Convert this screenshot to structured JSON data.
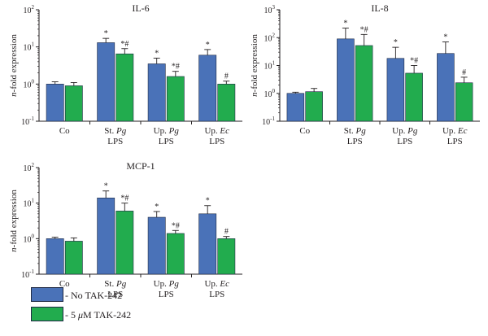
{
  "colors": {
    "no_tak": "#4a72b8",
    "tak": "#22ac4e",
    "axis": "#231f20"
  },
  "legend": [
    {
      "label": "- No TAK-242",
      "color": "#4a72b8"
    },
    {
      "label_prefix": "- 5 ",
      "label_mu": "μ",
      "label_suffix": "M TAK-242",
      "color": "#22ac4e"
    }
  ],
  "chart_data": [
    {
      "type": "bar",
      "title": "IL-6",
      "ylabel": "n-fold expression",
      "yscale": "log",
      "ylim": [
        0.1,
        100
      ],
      "yticks": [
        {
          "base": "10",
          "exp": "-1"
        },
        {
          "base": "10",
          "exp": "0"
        },
        {
          "base": "10",
          "exp": "1"
        },
        {
          "base": "10",
          "exp": "2"
        }
      ],
      "categories": [
        {
          "line1": "Co",
          "line1_italic": "",
          "line2": ""
        },
        {
          "line1": "St. ",
          "line1_italic": "Pg",
          "line2": "LPS"
        },
        {
          "line1": "Up. ",
          "line1_italic": "Pg",
          "line2": "LPS"
        },
        {
          "line1": "Up. ",
          "line1_italic": "Ec",
          "line2": "LPS"
        }
      ],
      "series": [
        {
          "name": "No TAK-242",
          "values": [
            1.0,
            13.0,
            3.5,
            6.0
          ],
          "err": [
            1.15,
            17.0,
            5.0,
            8.5
          ],
          "marks": [
            "",
            "*",
            "*",
            "*"
          ]
        },
        {
          "name": "5 μM TAK-242",
          "values": [
            0.9,
            6.5,
            1.6,
            1.0
          ],
          "err": [
            1.1,
            9.0,
            2.2,
            1.2
          ],
          "marks": [
            "",
            "*#",
            "*#",
            "#"
          ]
        }
      ]
    },
    {
      "type": "bar",
      "title": "IL-8",
      "ylabel": "n-fold expression",
      "yscale": "log",
      "ylim": [
        0.1,
        1000
      ],
      "yticks": [
        {
          "base": "10",
          "exp": "-1"
        },
        {
          "base": "10",
          "exp": "0"
        },
        {
          "base": "10",
          "exp": "1"
        },
        {
          "base": "10",
          "exp": "2"
        },
        {
          "base": "10",
          "exp": "3"
        }
      ],
      "categories": [
        {
          "line1": "Co",
          "line1_italic": "",
          "line2": ""
        },
        {
          "line1": "St. ",
          "line1_italic": "Pg",
          "line2": "LPS"
        },
        {
          "line1": "Up. ",
          "line1_italic": "Pg",
          "line2": "LPS"
        },
        {
          "line1": "Up. ",
          "line1_italic": "Ec",
          "line2": "LPS"
        }
      ],
      "series": [
        {
          "name": "No TAK-242",
          "values": [
            1.0,
            90.0,
            18.0,
            27.0
          ],
          "err": [
            1.1,
            220.0,
            45.0,
            70.0
          ],
          "marks": [
            "",
            "*",
            "*",
            "*"
          ]
        },
        {
          "name": "5 μM TAK-242",
          "values": [
            1.15,
            52.0,
            5.3,
            2.4
          ],
          "err": [
            1.5,
            130.0,
            10.0,
            3.8
          ],
          "marks": [
            "",
            "*#",
            "*#",
            "#"
          ]
        }
      ]
    },
    {
      "type": "bar",
      "title": "MCP-1",
      "ylabel": "n-fold expression",
      "yscale": "log",
      "ylim": [
        0.1,
        100
      ],
      "yticks": [
        {
          "base": "10",
          "exp": "-1"
        },
        {
          "base": "10",
          "exp": "0"
        },
        {
          "base": "10",
          "exp": "1"
        },
        {
          "base": "10",
          "exp": "2"
        }
      ],
      "categories": [
        {
          "line1": "Co",
          "line1_italic": "",
          "line2": ""
        },
        {
          "line1": "St. ",
          "line1_italic": "Pg",
          "line2": "LPS"
        },
        {
          "line1": "Up. ",
          "line1_italic": "Pg",
          "line2": "LPS"
        },
        {
          "line1": "Up. ",
          "line1_italic": "Ec",
          "line2": "LPS"
        }
      ],
      "series": [
        {
          "name": "No TAK-242",
          "values": [
            1.0,
            14.0,
            4.0,
            5.0
          ],
          "err": [
            1.1,
            22.0,
            5.8,
            8.5
          ],
          "marks": [
            "",
            "*",
            "*",
            "*"
          ]
        },
        {
          "name": "5 μM TAK-242",
          "values": [
            0.85,
            6.0,
            1.4,
            1.0
          ],
          "err": [
            1.05,
            10.0,
            1.7,
            1.15
          ],
          "marks": [
            "",
            "*#",
            "*#",
            "#"
          ]
        }
      ]
    }
  ]
}
